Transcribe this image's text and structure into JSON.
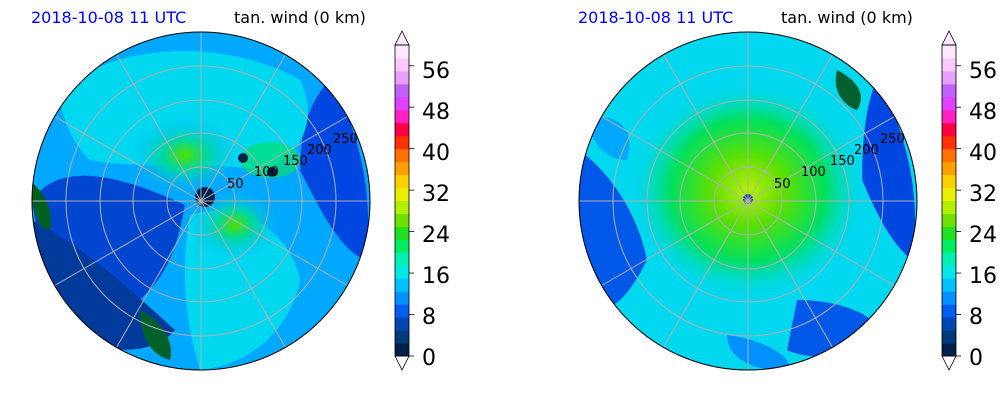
{
  "panels": [
    {
      "id": "left",
      "title_left": "2018-10-08 11 UTC",
      "title_right": "tan. wind (0 km)"
    },
    {
      "id": "right",
      "title_left": "2018-10-08 11 UTC",
      "title_right": "tan. wind (0 km)"
    }
  ],
  "chart_data": [
    {
      "type": "heatmap",
      "projection": "polar",
      "title": "2018-10-08 11 UTC",
      "subtitle": "tan. wind (0 km)",
      "radial_ticks": [
        "50",
        "100",
        "150",
        "200",
        "250"
      ],
      "radial_ticks_values": [
        50,
        100,
        150,
        200,
        250
      ],
      "grid": true,
      "colorbar": {
        "ticks": [
          0,
          8,
          16,
          24,
          32,
          40,
          48,
          56
        ],
        "range": [
          0,
          60
        ],
        "extend": "both"
      }
    },
    {
      "type": "heatmap",
      "projection": "polar",
      "title": "2018-10-08 11 UTC",
      "subtitle": "tan. wind (0 km)",
      "radial_ticks": [
        "50",
        "100",
        "150",
        "200",
        "250"
      ],
      "radial_ticks_values": [
        50,
        100,
        150,
        200,
        250
      ],
      "grid": true,
      "colorbar": {
        "ticks": [
          0,
          8,
          16,
          24,
          32,
          40,
          48,
          56
        ],
        "range": [
          0,
          60
        ],
        "extend": "both"
      }
    }
  ],
  "colorbar_colors": [
    "#00204c",
    "#003a7a",
    "#0046b4",
    "#005ef0",
    "#0090ff",
    "#00c0ff",
    "#00e8e8",
    "#00f0b0",
    "#00ee60",
    "#20e020",
    "#70e000",
    "#b0f000",
    "#e8f000",
    "#ffd000",
    "#ffa000",
    "#ff7000",
    "#ff3000",
    "#ff0040",
    "#ff20c0",
    "#e040ff",
    "#c060ff",
    "#e8a0ff",
    "#f8c8ff",
    "#fde8ff"
  ]
}
